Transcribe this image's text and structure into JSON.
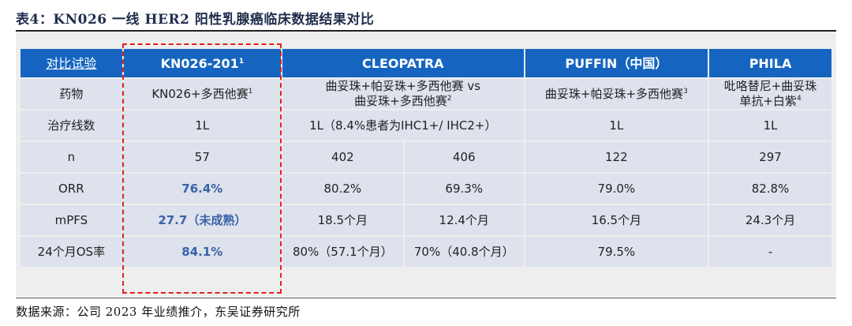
{
  "title": "表4：KN026 一线 HER2 阳性乳腺癌临床数据结果对比",
  "header": {
    "col0": "对比试验",
    "col1": "KN026-201",
    "col1_sup": "1",
    "col2": "CLEOPATRA",
    "col3": "PUFFIN（中国）",
    "col4": "PHILA"
  },
  "rows": {
    "drug": {
      "label": "药物",
      "kn026": "KN026+多西他赛",
      "kn026_sup": "1",
      "cleopatra_line1": "曲妥珠+帕妥珠+多西他赛 vs",
      "cleopatra_line2": "曲妥珠+多西他赛",
      "cleopatra_sup": "2",
      "puffin": "曲妥珠+帕妥珠+多西他赛",
      "puffin_sup": "3",
      "phila_line1": "吡咯替尼+曲妥珠",
      "phila_line2": "单抗+白紫",
      "phila_sup": "4"
    },
    "line": {
      "label": "治疗线数",
      "kn026": "1L",
      "cleopatra": "1L（8.4%患者为IHC1+/ IHC2+）",
      "puffin": "1L",
      "phila": "1L"
    },
    "n": {
      "label": "n",
      "kn026": "57",
      "cleopatra_a": "402",
      "cleopatra_b": "406",
      "puffin": "122",
      "phila": "297"
    },
    "orr": {
      "label": "ORR",
      "kn026": "76.4%",
      "cleopatra_a": "80.2%",
      "cleopatra_b": "69.3%",
      "puffin": "79.0%",
      "phila": "82.8%"
    },
    "mpfs": {
      "label": "mPFS",
      "kn026": "27.7（未成熟）",
      "cleopatra_a": "18.5个月",
      "cleopatra_b": "12.4个月",
      "puffin": "16.5个月",
      "phila": "24.3个月"
    },
    "os24": {
      "label": "24个月OS率",
      "kn026": "84.1%",
      "cleopatra_a": "80%（57.1个月）",
      "cleopatra_b": "70%（40.8个月）",
      "puffin": "79.5%",
      "phila": "-"
    }
  },
  "source": "数据来源：公司 2023 年业绩推介，东吴证券研究所",
  "colors": {
    "header_bg": "#1565c0",
    "cell_bg": "#dde2ec",
    "highlight_text": "#3a62a8",
    "dash_border": "#e0211f"
  }
}
